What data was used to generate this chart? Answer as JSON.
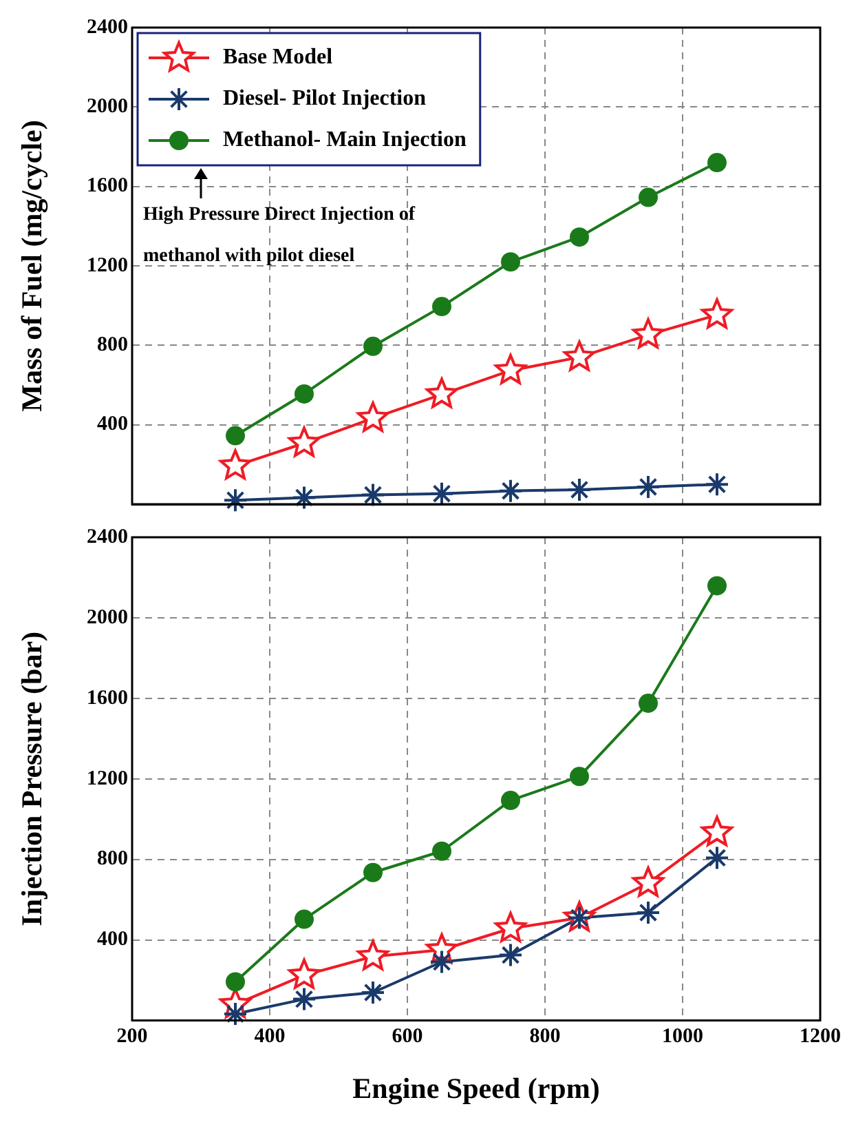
{
  "chart_data": [
    {
      "type": "line",
      "ylabel": "Mass of Fuel (mg/cycle)",
      "x": [
        350,
        450,
        550,
        650,
        750,
        850,
        950,
        1050
      ],
      "xlim": [
        200,
        1200
      ],
      "xticks": [
        200,
        400,
        600,
        800,
        1000,
        1200
      ],
      "ylim": [
        0,
        2400
      ],
      "yticks": [
        400,
        800,
        1200,
        1600,
        2000,
        2400
      ],
      "grid": true,
      "legend": "top left",
      "tick_labels": "y",
      "annotations": [
        "High Pressure Direct Injection of methanol with pilot diesel"
      ],
      "series": [
        {
          "name": "Base Model",
          "color": "#ee1c25",
          "marker": "star",
          "values": [
            193,
            307,
            433,
            553,
            673,
            740,
            853,
            953
          ]
        },
        {
          "name": "Diesel- Pilot Injection",
          "color": "#1a3a6b",
          "marker": "cross",
          "values": [
            20,
            33,
            47,
            53,
            67,
            73,
            87,
            100
          ]
        },
        {
          "name": "Methanol- Main Injection",
          "color": "#1a7a1a",
          "marker": "circle",
          "values": [
            345,
            555,
            795,
            995,
            1220,
            1345,
            1545,
            1720
          ]
        }
      ]
    },
    {
      "type": "line",
      "ylabel": "Injection Pressure (bar)",
      "xlabel": "Engine Speed (rpm)",
      "x": [
        350,
        450,
        550,
        650,
        750,
        850,
        950,
        1050
      ],
      "xlim": [
        200,
        1200
      ],
      "xticks": [
        200,
        400,
        600,
        800,
        1000,
        1200
      ],
      "ylim": [
        0,
        2400
      ],
      "yticks": [
        400,
        800,
        1200,
        1600,
        2000,
        2400
      ],
      "grid": true,
      "series": [
        {
          "color": "#ee1c25",
          "marker": "star",
          "values": [
            80,
            225,
            318,
            351,
            457,
            510,
            682,
            934
          ]
        },
        {
          "color": "#1a3a6b",
          "marker": "cross",
          "values": [
            33,
            106,
            139,
            291,
            325,
            510,
            536,
            808
          ]
        },
        {
          "color": "#1a7a1a",
          "marker": "circle",
          "values": [
            192,
            503,
            735,
            841,
            1093,
            1212,
            1576,
            2159
          ]
        }
      ]
    }
  ]
}
